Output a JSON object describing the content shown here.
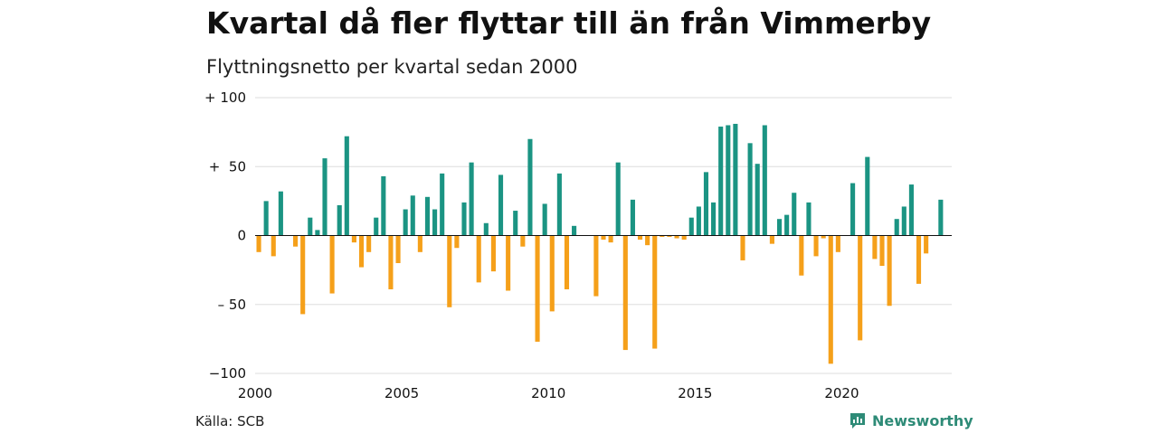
{
  "title": "Kvartal då fler flyttar till än från Vimmerby",
  "subtitle": "Flyttningsnetto per kvartal sedan 2000",
  "source": "Källa: SCB",
  "brand": "Newsworthy",
  "colors": {
    "positive": "#1b9483",
    "negative": "#f5a01a",
    "grid": "#dddddd",
    "axis": "#111111"
  },
  "chart_data": {
    "type": "bar",
    "title": "Kvartal då fler flyttar till än från Vimmerby",
    "subtitle": "Flyttningsnetto per kvartal sedan 2000",
    "ylim": [
      -100,
      100
    ],
    "xlim": [
      2000,
      2023.75
    ],
    "yticks": [
      100,
      50,
      0,
      -50,
      -100
    ],
    "ytick_labels": [
      "+ 100",
      "+  50",
      "0",
      "– 50",
      "−100"
    ],
    "xticks": [
      2000,
      2005,
      2010,
      2015,
      2020
    ],
    "xtick_labels": [
      "2000",
      "2005",
      "2010",
      "2015",
      "2020"
    ],
    "grid": true,
    "start_quarter": "2000 Q1",
    "values": [
      -12,
      25,
      -15,
      32,
      0,
      -8,
      -57,
      13,
      4,
      56,
      -42,
      22,
      72,
      -5,
      -23,
      -12,
      13,
      43,
      -39,
      -20,
      19,
      29,
      -12,
      28,
      19,
      45,
      -52,
      -9,
      24,
      53,
      -34,
      9,
      -26,
      44,
      -40,
      18,
      -8,
      70,
      -77,
      23,
      -55,
      45,
      -39,
      7,
      0,
      0,
      -44,
      -3,
      -5,
      53,
      -83,
      26,
      -3,
      -7,
      -82,
      -1,
      -1,
      -2,
      -3,
      13,
      21,
      46,
      24,
      79,
      80,
      81,
      -18,
      67,
      52,
      80,
      -6,
      12,
      15,
      31,
      -29,
      24,
      -15,
      -2,
      -93,
      -12,
      0,
      38,
      -76,
      57,
      -17,
      -22,
      -51,
      12,
      21,
      37,
      -35,
      -13,
      0,
      26
    ]
  }
}
